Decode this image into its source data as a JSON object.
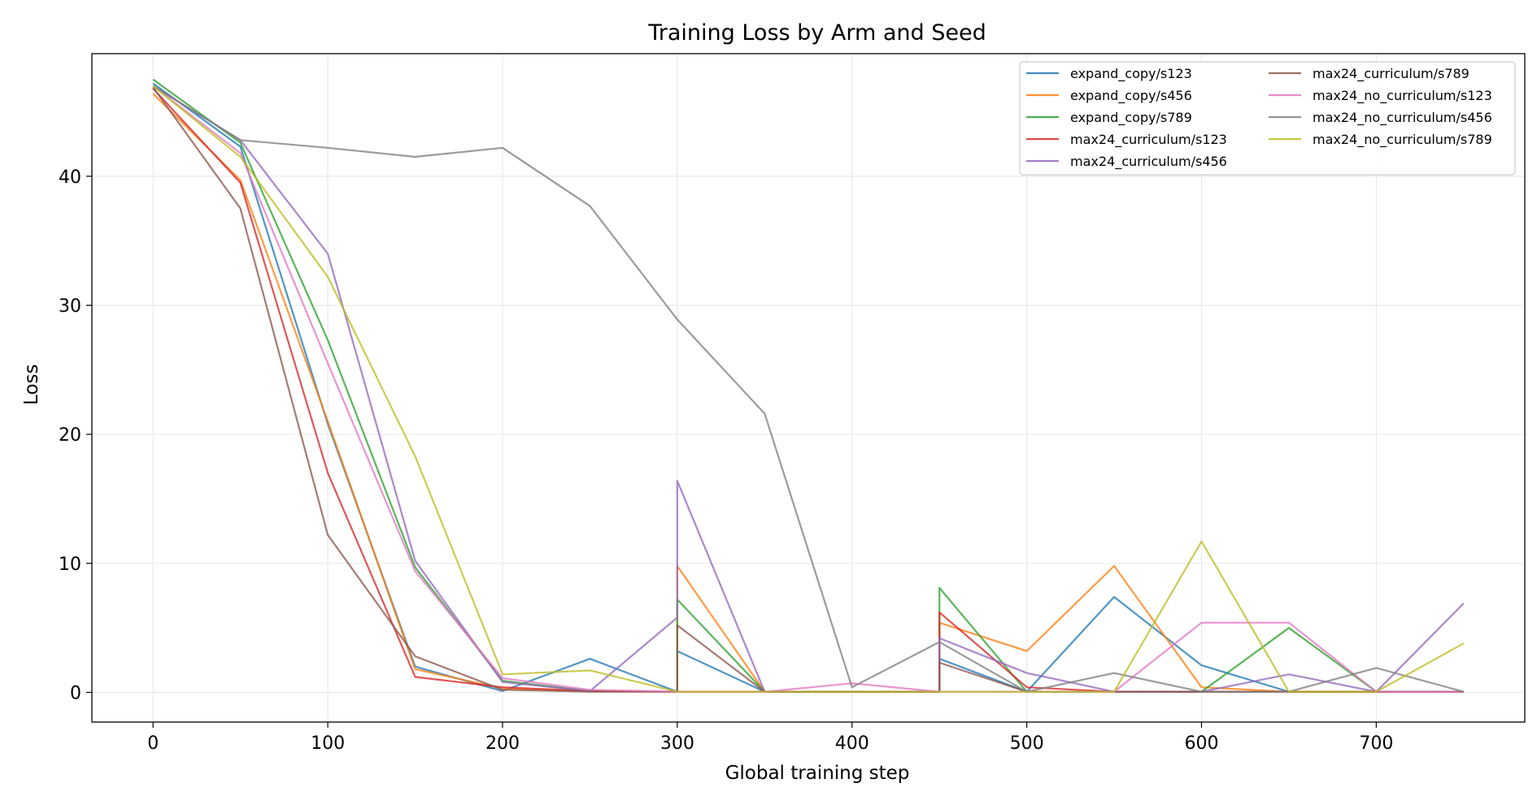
{
  "chart_data": {
    "type": "line",
    "title": "Training Loss by Arm and Seed",
    "xlabel": "Global training step",
    "ylabel": "Loss",
    "xlim": [
      -35,
      785
    ],
    "ylim": [
      -2.3,
      49.5
    ],
    "xticks": [
      0,
      100,
      200,
      300,
      400,
      500,
      600,
      700
    ],
    "yticks": [
      0,
      10,
      20,
      30,
      40
    ],
    "grid": true,
    "legend_position": "top-right",
    "legend_columns": 2,
    "series": [
      {
        "name": "expand_copy/s123",
        "color": "#1f77b4",
        "x": [
          0,
          50,
          100,
          150,
          200,
          250,
          300,
          300,
          350,
          400,
          450,
          450,
          500,
          550,
          600,
          650,
          700,
          750
        ],
        "y": [
          47.2,
          42.3,
          20.8,
          2.0,
          0.1,
          2.6,
          0.05,
          3.2,
          0.05,
          0.05,
          0.05,
          2.6,
          0.05,
          7.4,
          2.1,
          0.05,
          0.05,
          0.05
        ]
      },
      {
        "name": "expand_copy/s456",
        "color": "#ff7f0e",
        "x": [
          0,
          50,
          100,
          150,
          200,
          250,
          300,
          300,
          350,
          400,
          450,
          450,
          500,
          550,
          600,
          650,
          700,
          750
        ],
        "y": [
          46.4,
          39.7,
          21.0,
          1.8,
          0.3,
          0.1,
          0.05,
          9.8,
          0.05,
          0.05,
          0.05,
          5.4,
          3.2,
          9.8,
          0.4,
          0.05,
          0.05,
          0.05
        ]
      },
      {
        "name": "expand_copy/s789",
        "color": "#2ca02c",
        "x": [
          0,
          50,
          100,
          150,
          200,
          250,
          300,
          300,
          350,
          400,
          450,
          450,
          500,
          550,
          600,
          650,
          700,
          750
        ],
        "y": [
          47.5,
          42.6,
          27.3,
          9.7,
          0.9,
          0.1,
          0.05,
          7.2,
          0.05,
          0.05,
          0.05,
          8.1,
          0.05,
          0.05,
          0.05,
          5.0,
          0.05,
          0.05
        ]
      },
      {
        "name": "max24_curriculum/s123",
        "color": "#d62728",
        "x": [
          0,
          50,
          100,
          150,
          200,
          250,
          300,
          300,
          350,
          400,
          450,
          450,
          500,
          550,
          600,
          650,
          700,
          750
        ],
        "y": [
          46.8,
          39.5,
          17.0,
          1.2,
          0.4,
          0.1,
          0.05,
          0.05,
          0.05,
          0.05,
          0.05,
          6.2,
          0.4,
          0.05,
          0.05,
          0.05,
          0.05,
          0.05
        ]
      },
      {
        "name": "max24_curriculum/s456",
        "color": "#9467bd",
        "x": [
          0,
          50,
          100,
          150,
          200,
          250,
          300,
          300,
          350,
          400,
          450,
          450,
          500,
          550,
          600,
          650,
          700,
          750
        ],
        "y": [
          47.0,
          42.8,
          34.0,
          10.2,
          0.8,
          0.1,
          5.8,
          16.4,
          0.05,
          0.05,
          0.05,
          4.2,
          1.5,
          0.05,
          0.05,
          1.4,
          0.05,
          6.9
        ]
      },
      {
        "name": "max24_curriculum/s789",
        "color": "#8c564b",
        "x": [
          0,
          50,
          100,
          150,
          200,
          250,
          300,
          300,
          350,
          400,
          450,
          450,
          500,
          550,
          600,
          650,
          700,
          750
        ],
        "y": [
          46.9,
          37.5,
          12.2,
          2.8,
          0.2,
          0.05,
          0.05,
          5.2,
          0.05,
          0.05,
          0.05,
          2.3,
          0.05,
          0.05,
          0.05,
          0.05,
          0.05,
          0.05
        ]
      },
      {
        "name": "max24_no_curriculum/s123",
        "color": "#e377c2",
        "x": [
          0,
          50,
          100,
          150,
          200,
          250,
          300,
          350,
          400,
          450,
          500,
          550,
          600,
          650,
          700,
          750
        ],
        "y": [
          47.0,
          41.8,
          25.5,
          9.4,
          1.1,
          0.2,
          0.05,
          0.05,
          0.7,
          0.05,
          0.05,
          0.05,
          5.4,
          5.4,
          0.05,
          0.05
        ]
      },
      {
        "name": "max24_no_curriculum/s456",
        "color": "#7f7f7f",
        "x": [
          0,
          50,
          100,
          150,
          200,
          250,
          300,
          350,
          400,
          450,
          500,
          550,
          600,
          650,
          700,
          750
        ],
        "y": [
          47.0,
          42.8,
          42.2,
          41.5,
          42.2,
          37.7,
          28.9,
          21.6,
          0.4,
          3.9,
          0.05,
          1.5,
          0.05,
          0.05,
          1.9,
          0.05
        ]
      },
      {
        "name": "max24_no_curriculum/s789",
        "color": "#bcbd22",
        "x": [
          0,
          50,
          100,
          150,
          200,
          250,
          300,
          350,
          400,
          450,
          500,
          550,
          600,
          650,
          700,
          750
        ],
        "y": [
          47.0,
          41.5,
          32.2,
          18.3,
          1.4,
          1.7,
          0.05,
          0.05,
          0.05,
          0.05,
          0.05,
          0.05,
          11.7,
          0.05,
          0.05,
          3.8
        ]
      }
    ]
  }
}
